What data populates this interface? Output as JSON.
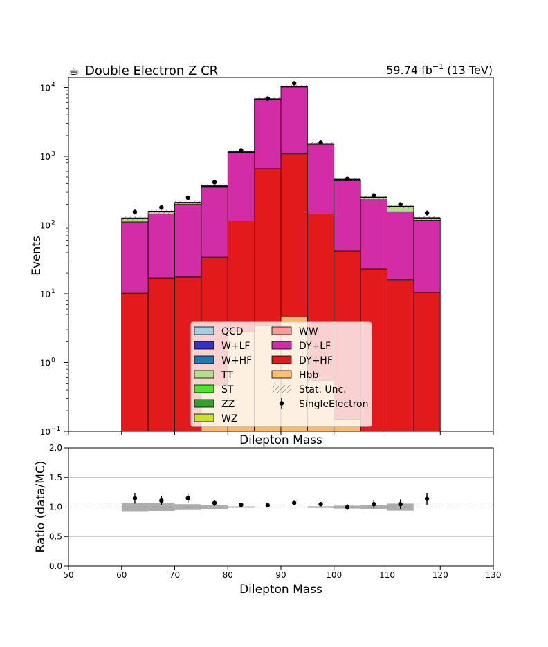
{
  "header": {
    "icon": "coffee-cup-icon",
    "title": "Double Electron Z CR",
    "lumi": "59.74 fb",
    "lumi_exp": "−1",
    "energy": "(13 TeV)"
  },
  "chart_data": [
    {
      "type": "bar",
      "subtype": "stacked-histogram-log",
      "xlabel": "Dilepton Mass",
      "ylabel": "Events",
      "xlim": [
        50,
        130
      ],
      "ylim": [
        0.1,
        14000
      ],
      "yscale": "log",
      "ytick_labels": [
        {
          "value": 0.1,
          "base": "10",
          "exp": "−1"
        },
        {
          "value": 1,
          "base": "10",
          "exp": "0"
        },
        {
          "value": 10,
          "base": "10",
          "exp": "1"
        },
        {
          "value": 100,
          "base": "10",
          "exp": "2"
        },
        {
          "value": 1000,
          "base": "10",
          "exp": "3"
        },
        {
          "value": 10000,
          "base": "10",
          "exp": "4"
        }
      ],
      "bin_edges": [
        60,
        65,
        70,
        75,
        80,
        85,
        90,
        95,
        100,
        105,
        110,
        115,
        120
      ],
      "stack_order": [
        "DY+HF",
        "DY+LF",
        "TT",
        "W+LF"
      ],
      "series": [
        {
          "name": "QCD",
          "color": "#a6cee3",
          "values": [
            0,
            0,
            0,
            0,
            0,
            0,
            0,
            0,
            0,
            0,
            0,
            0
          ]
        },
        {
          "name": "W+LF",
          "color": "#3333cc",
          "values": [
            1,
            0,
            0,
            0,
            0,
            0,
            0,
            0,
            0,
            0,
            0,
            3
          ]
        },
        {
          "name": "W+HF",
          "color": "#1f78b4",
          "values": [
            0,
            0,
            0,
            0,
            0,
            0,
            0,
            0,
            0,
            0,
            0,
            0
          ]
        },
        {
          "name": "TT",
          "color": "#b2df8a",
          "values": [
            13,
            12,
            12,
            15,
            12,
            20,
            20,
            15,
            17,
            19,
            30,
            6
          ]
        },
        {
          "name": "ST",
          "color": "#4ce62a",
          "values": [
            0,
            0,
            0,
            0,
            0,
            0,
            0,
            0,
            0,
            0,
            0,
            0
          ]
        },
        {
          "name": "ZZ",
          "color": "#33a02c",
          "values": [
            0,
            0,
            0,
            0,
            0,
            0,
            0,
            0,
            0,
            0,
            0,
            0
          ]
        },
        {
          "name": "WZ",
          "color": "#cde12b",
          "values": [
            0,
            0,
            0,
            0,
            0,
            0,
            0,
            0,
            0,
            0,
            0,
            0
          ]
        },
        {
          "name": "WW",
          "color": "#fb9a99",
          "values": [
            0,
            0,
            0,
            0,
            0,
            0,
            0,
            0,
            0,
            0,
            0,
            0
          ]
        },
        {
          "name": "DY+LF",
          "color": "#d22ca7",
          "values": [
            101,
            128,
            182,
            320,
            1020,
            6100,
            9200,
            1340,
            400,
            210,
            140,
            107
          ]
        },
        {
          "name": "DY+HF",
          "color": "#e31a1c",
          "values": [
            10.2,
            17,
            17.5,
            34,
            115,
            660,
            1080,
            145,
            42,
            23,
            16,
            10.5
          ]
        },
        {
          "name": "Hbb",
          "color": "#fdbf6f",
          "values": [
            0.1,
            0.1,
            0.1,
            0.47,
            2.8,
            3.5,
            4.6,
            0.55,
            0.15,
            0.1,
            0.1,
            0.1
          ]
        }
      ],
      "data_series": {
        "name": "SingleElectron",
        "x": [
          62.5,
          67.5,
          72.5,
          77.5,
          82.5,
          87.5,
          92.5,
          97.5,
          102.5,
          107.5,
          112.5,
          117.5
        ],
        "values": [
          155,
          180,
          250,
          420,
          1220,
          6900,
          11500,
          1580,
          470,
          270,
          200,
          150
        ]
      },
      "legend": {
        "position": "bottom-center",
        "entries": [
          {
            "label": "QCD",
            "color": "#a6cee3",
            "kind": "patch"
          },
          {
            "label": "W+LF",
            "color": "#3333cc",
            "kind": "patch"
          },
          {
            "label": "W+HF",
            "color": "#1f78b4",
            "kind": "patch"
          },
          {
            "label": "TT",
            "color": "#b2df8a",
            "kind": "patch"
          },
          {
            "label": "ST",
            "color": "#4ce62a",
            "kind": "patch"
          },
          {
            "label": "ZZ",
            "color": "#33a02c",
            "kind": "patch"
          },
          {
            "label": "WZ",
            "color": "#cde12b",
            "kind": "patch"
          },
          {
            "label": "WW",
            "color": "#fb9a99",
            "kind": "patch"
          },
          {
            "label": "DY+LF",
            "color": "#d22ca7",
            "kind": "patch"
          },
          {
            "label": "DY+HF",
            "color": "#e31a1c",
            "kind": "patch"
          },
          {
            "label": "Hbb",
            "color": "#fdbf6f",
            "kind": "patch"
          },
          {
            "label": "Stat. Unc.",
            "color": "#888888",
            "kind": "hatch"
          },
          {
            "label": "SingleElectron",
            "color": "#000000",
            "kind": "marker"
          }
        ]
      }
    },
    {
      "type": "scatter",
      "subtype": "ratio",
      "xlabel": "Dilepton Mass",
      "ylabel": "Ratio (data/MC)",
      "xlim": [
        50,
        130
      ],
      "ylim": [
        0,
        2
      ],
      "xticks": [
        50,
        60,
        70,
        80,
        90,
        100,
        110,
        120,
        130
      ],
      "yticks": [
        0.0,
        0.5,
        1.0,
        1.5,
        2.0
      ],
      "ytick_labels": [
        "0.0",
        "0.5",
        "1.0",
        "1.5",
        "2.0"
      ],
      "grid": true,
      "reference_line": 1.0,
      "x": [
        62.5,
        67.5,
        72.5,
        77.5,
        82.5,
        87.5,
        92.5,
        97.5,
        102.5,
        107.5,
        112.5,
        117.5
      ],
      "values": [
        1.15,
        1.11,
        1.15,
        1.07,
        1.04,
        1.03,
        1.07,
        1.05,
        1.0,
        1.05,
        1.05,
        1.14
      ],
      "errors": [
        0.09,
        0.08,
        0.07,
        0.05,
        0.03,
        0.012,
        0.01,
        0.03,
        0.05,
        0.07,
        0.08,
        0.1
      ],
      "mc_unc": [
        0.07,
        0.065,
        0.05,
        0.03,
        0.012,
        0.006,
        0.004,
        0.014,
        0.025,
        0.04,
        0.06,
        0
      ]
    }
  ]
}
